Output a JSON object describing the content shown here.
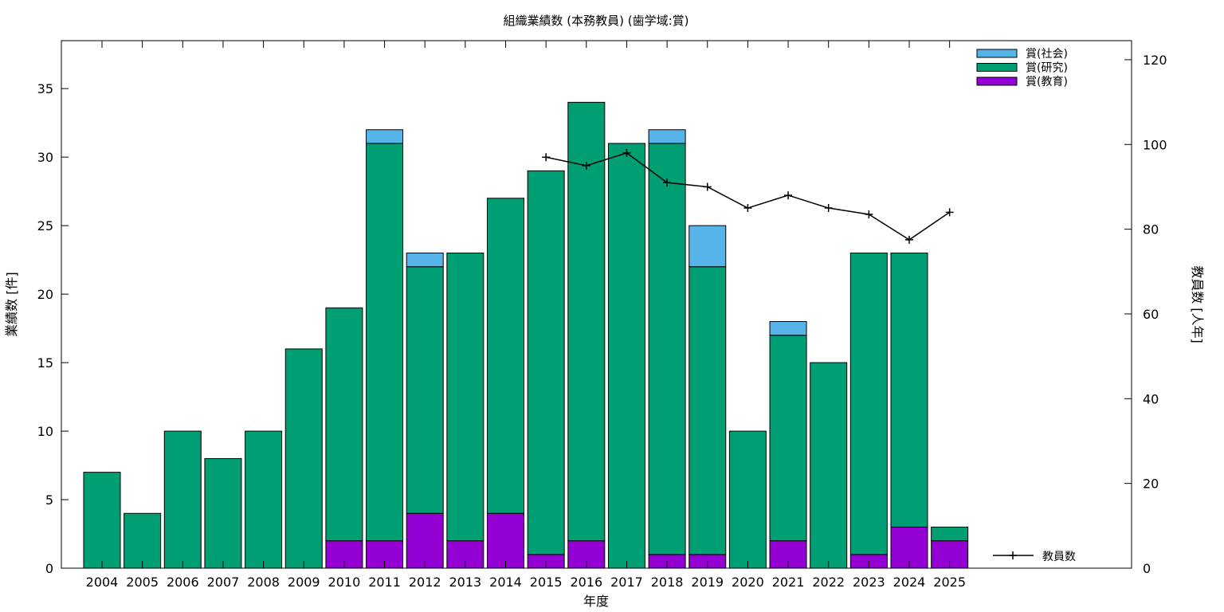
{
  "chart_data": {
    "type": "bar",
    "stacked": true,
    "title": "組織業績数 (本務教員) (歯学域:賞)",
    "xlabel": "年度",
    "ylabel": "業績数 [件]",
    "y2label": "教員数 [人年]",
    "categories": [
      "2004",
      "2005",
      "2006",
      "2007",
      "2008",
      "2009",
      "2010",
      "2011",
      "2012",
      "2013",
      "2014",
      "2015",
      "2016",
      "2017",
      "2018",
      "2019",
      "2020",
      "2021",
      "2022",
      "2023",
      "2024",
      "2025"
    ],
    "series": [
      {
        "name": "賞(教育)",
        "color": "#9400d3",
        "values": [
          0,
          0,
          0,
          0,
          0,
          0,
          2,
          2,
          4,
          2,
          4,
          1,
          2,
          0,
          1,
          1,
          0,
          2,
          0,
          1,
          3,
          2
        ]
      },
      {
        "name": "賞(研究)",
        "color": "#009e73",
        "values": [
          7,
          4,
          10,
          8,
          10,
          16,
          17,
          29,
          18,
          21,
          23,
          28,
          32,
          31,
          30,
          21,
          10,
          15,
          15,
          22,
          20,
          1
        ]
      },
      {
        "name": "賞(社会)",
        "color": "#56b4e9",
        "values": [
          0,
          0,
          0,
          0,
          0,
          0,
          0,
          1,
          1,
          0,
          0,
          0,
          0,
          0,
          1,
          3,
          0,
          1,
          0,
          0,
          0,
          0
        ]
      }
    ],
    "legend_order": [
      "賞(社会)",
      "賞(研究)",
      "賞(教育)"
    ],
    "legend_position": "top-right",
    "line_series": {
      "name": "教員数",
      "axis": "y2",
      "color": "#000000",
      "x": [
        "2015",
        "2016",
        "2017",
        "2018",
        "2019",
        "2020",
        "2021",
        "2022",
        "2023",
        "2024",
        "2025"
      ],
      "values": [
        97,
        95,
        98,
        91,
        90,
        85,
        88,
        85,
        83.5,
        77.5,
        84
      ]
    },
    "ylim": [
      0,
      38.5
    ],
    "y2lim": [
      0,
      124.5
    ],
    "yticks": [
      0,
      5,
      10,
      15,
      20,
      25,
      30,
      35
    ],
    "y2ticks": [
      0,
      20,
      40,
      60,
      80,
      100,
      120
    ],
    "grid": false
  }
}
